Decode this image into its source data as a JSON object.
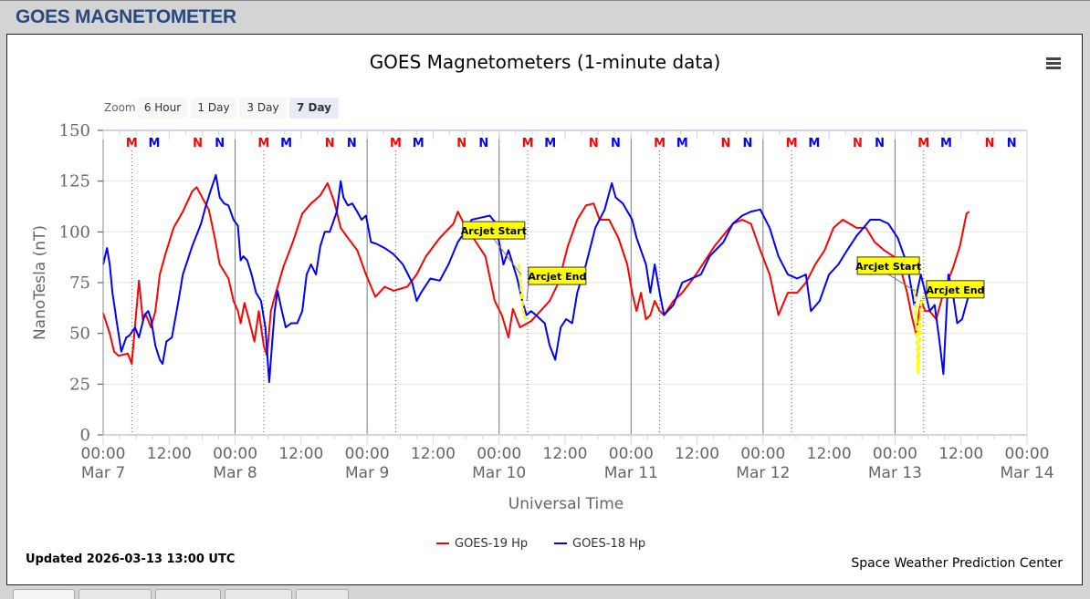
{
  "page": {
    "title": "GOES MAGNETOMETER"
  },
  "chart_data": {
    "type": "line",
    "title": "GOES Magnetometers (1-minute data)",
    "xlabel": "Universal Time",
    "ylabel": "NanoTesla (nT)",
    "x_unit": "hours since 2026-03-07 00:00 UTC",
    "xlim": [
      0,
      168
    ],
    "ylim": [
      0,
      150
    ],
    "yticks": [
      0,
      25,
      50,
      75,
      100,
      125,
      150
    ],
    "xticks": [
      {
        "hour": 0,
        "time": "00:00",
        "date": "Mar 7"
      },
      {
        "hour": 12,
        "time": "12:00",
        "date": ""
      },
      {
        "hour": 24,
        "time": "00:00",
        "date": "Mar 8"
      },
      {
        "hour": 36,
        "time": "12:00",
        "date": ""
      },
      {
        "hour": 48,
        "time": "00:00",
        "date": "Mar 9"
      },
      {
        "hour": 60,
        "time": "12:00",
        "date": ""
      },
      {
        "hour": 72,
        "time": "00:00",
        "date": "Mar 10"
      },
      {
        "hour": 84,
        "time": "12:00",
        "date": ""
      },
      {
        "hour": 96,
        "time": "00:00",
        "date": "Mar 11"
      },
      {
        "hour": 108,
        "time": "12:00",
        "date": ""
      },
      {
        "hour": 120,
        "time": "00:00",
        "date": "Mar 12"
      },
      {
        "hour": 132,
        "time": "12:00",
        "date": ""
      },
      {
        "hour": 144,
        "time": "00:00",
        "date": "Mar 13"
      },
      {
        "hour": 156,
        "time": "12:00",
        "date": ""
      },
      {
        "hour": 168,
        "time": "00:00",
        "date": "Mar 14"
      }
    ],
    "grid": true,
    "legend_position": "bottom-center",
    "series": [
      {
        "name": "GOES-19 Hp",
        "color": "#ff0000",
        "points": [
          [
            0,
            60
          ],
          [
            1.2,
            50
          ],
          [
            2,
            41
          ],
          [
            2.8,
            39
          ],
          [
            4.5,
            40
          ],
          [
            5.2,
            35
          ],
          [
            6.2,
            66
          ],
          [
            6.5,
            76
          ],
          [
            7.2,
            57
          ],
          [
            7.8,
            59
          ],
          [
            8.7,
            53
          ],
          [
            9.5,
            61
          ],
          [
            10.3,
            79
          ],
          [
            11.2,
            88
          ],
          [
            12.8,
            102
          ],
          [
            14.5,
            110
          ],
          [
            16.2,
            120
          ],
          [
            17,
            122
          ],
          [
            18.2,
            116
          ],
          [
            19.2,
            111
          ],
          [
            20.3,
            97
          ],
          [
            21.2,
            84
          ],
          [
            22.8,
            77
          ],
          [
            23.7,
            66
          ],
          [
            24.5,
            61
          ],
          [
            25,
            55
          ],
          [
            25.7,
            65
          ],
          [
            26.5,
            57
          ],
          [
            27.5,
            46
          ],
          [
            28.3,
            61
          ],
          [
            29.2,
            44
          ],
          [
            29.8,
            39
          ],
          [
            30.5,
            61
          ],
          [
            31.2,
            68
          ],
          [
            32.8,
            83
          ],
          [
            34.5,
            95
          ],
          [
            36.2,
            109
          ],
          [
            37.8,
            114
          ],
          [
            39.5,
            118
          ],
          [
            40.8,
            124
          ],
          [
            42,
            115
          ],
          [
            43.2,
            102
          ],
          [
            44.5,
            97
          ],
          [
            46.2,
            91
          ],
          [
            47.8,
            79
          ],
          [
            49.5,
            68
          ],
          [
            51.2,
            73
          ],
          [
            52.8,
            71
          ],
          [
            55.3,
            73
          ],
          [
            57,
            79
          ],
          [
            58.7,
            88
          ],
          [
            61.2,
            97
          ],
          [
            63.7,
            104
          ],
          [
            64.5,
            110
          ],
          [
            65.8,
            103
          ],
          [
            67.8,
            95
          ],
          [
            69.5,
            88
          ],
          [
            71.2,
            66
          ],
          [
            72.5,
            59
          ],
          [
            73.7,
            48
          ],
          [
            74.5,
            62
          ],
          [
            75.8,
            53
          ],
          [
            77.8,
            56
          ],
          [
            79.5,
            61
          ],
          [
            81.2,
            66
          ],
          [
            82.8,
            75
          ],
          [
            84.5,
            93
          ],
          [
            86.2,
            106
          ],
          [
            87.8,
            113
          ],
          [
            89.2,
            114
          ],
          [
            90.3,
            106
          ],
          [
            92,
            106
          ],
          [
            93.7,
            97
          ],
          [
            95.3,
            84
          ],
          [
            96.2,
            70
          ],
          [
            97,
            61
          ],
          [
            97.8,
            70
          ],
          [
            98.7,
            57
          ],
          [
            99.5,
            59
          ],
          [
            100.3,
            66
          ],
          [
            101.2,
            61
          ],
          [
            102,
            59
          ],
          [
            103.7,
            66
          ],
          [
            105.3,
            70
          ],
          [
            107.8,
            79
          ],
          [
            111.2,
            93
          ],
          [
            114.5,
            104
          ],
          [
            116.2,
            106
          ],
          [
            117.8,
            104
          ],
          [
            119.5,
            91
          ],
          [
            121.2,
            79
          ],
          [
            122.8,
            59
          ],
          [
            124.5,
            70
          ],
          [
            126.2,
            70
          ],
          [
            127.8,
            75
          ],
          [
            129.5,
            84
          ],
          [
            131.2,
            91
          ],
          [
            132.8,
            102
          ],
          [
            134.5,
            106
          ],
          [
            137,
            102
          ],
          [
            138.7,
            102
          ],
          [
            140.3,
            95
          ],
          [
            142,
            91
          ],
          [
            143.7,
            88
          ],
          [
            145.3,
            79
          ],
          [
            146.2,
            70
          ],
          [
            147,
            59
          ],
          [
            147.8,
            50
          ],
          [
            148.7,
            66
          ],
          [
            149.5,
            61
          ],
          [
            150.3,
            61
          ],
          [
            151.5,
            57
          ],
          [
            152.8,
            70
          ],
          [
            154.5,
            82
          ],
          [
            155.8,
            93
          ],
          [
            157,
            109
          ],
          [
            157.5,
            110
          ]
        ]
      },
      {
        "name": "GOES-18 Hp",
        "color": "#0000ff",
        "points": [
          [
            0,
            84
          ],
          [
            0.7,
            92
          ],
          [
            1.2,
            84
          ],
          [
            1.7,
            70
          ],
          [
            2.5,
            55
          ],
          [
            3.3,
            41
          ],
          [
            4.2,
            48
          ],
          [
            4.8,
            49
          ],
          [
            5.8,
            53
          ],
          [
            6.5,
            48
          ],
          [
            7.5,
            59
          ],
          [
            8.2,
            61
          ],
          [
            8.7,
            57
          ],
          [
            9.5,
            44
          ],
          [
            10.3,
            37
          ],
          [
            10.8,
            35
          ],
          [
            11.5,
            46
          ],
          [
            12.5,
            48
          ],
          [
            13.7,
            66
          ],
          [
            14.5,
            79
          ],
          [
            16.2,
            93
          ],
          [
            17.8,
            104
          ],
          [
            18.7,
            113
          ],
          [
            19.5,
            120
          ],
          [
            20.5,
            128
          ],
          [
            21.2,
            117
          ],
          [
            22,
            114
          ],
          [
            22.8,
            113
          ],
          [
            23.7,
            106
          ],
          [
            24.5,
            103
          ],
          [
            25,
            86
          ],
          [
            25.5,
            88
          ],
          [
            26.2,
            86
          ],
          [
            27,
            79
          ],
          [
            27.8,
            70
          ],
          [
            28.7,
            66
          ],
          [
            29.5,
            53
          ],
          [
            30.2,
            26
          ],
          [
            30.7,
            44
          ],
          [
            31.2,
            61
          ],
          [
            31.7,
            71
          ],
          [
            32.5,
            61
          ],
          [
            33.2,
            53
          ],
          [
            34.2,
            55
          ],
          [
            35.3,
            55
          ],
          [
            36.2,
            61
          ],
          [
            37,
            79
          ],
          [
            37.8,
            84
          ],
          [
            38.7,
            79
          ],
          [
            39.5,
            93
          ],
          [
            40.3,
            100
          ],
          [
            41.2,
            100
          ],
          [
            42.5,
            110
          ],
          [
            43.2,
            125
          ],
          [
            43.7,
            117
          ],
          [
            44.5,
            113
          ],
          [
            45.3,
            114
          ],
          [
            46.2,
            110
          ],
          [
            47,
            106
          ],
          [
            47.8,
            108
          ],
          [
            48.7,
            95
          ],
          [
            49.8,
            94
          ],
          [
            51.2,
            92
          ],
          [
            52.8,
            89
          ],
          [
            54.5,
            84
          ],
          [
            56.2,
            75
          ],
          [
            57,
            66
          ],
          [
            57.8,
            70
          ],
          [
            59.5,
            77
          ],
          [
            61.2,
            76
          ],
          [
            62.8,
            84
          ],
          [
            64.5,
            95
          ],
          [
            65.8,
            100
          ],
          [
            67,
            106
          ],
          [
            68.7,
            107
          ],
          [
            70.3,
            108
          ],
          [
            71.2,
            105
          ],
          [
            72,
            95
          ],
          [
            72.8,
            84
          ],
          [
            73.7,
            91
          ],
          [
            74.5,
            84
          ],
          [
            75.3,
            77
          ],
          [
            76.2,
            66
          ],
          [
            77,
            59
          ],
          [
            77.8,
            61
          ],
          [
            78.7,
            59
          ],
          [
            79.5,
            57
          ],
          [
            80.3,
            55
          ],
          [
            81.2,
            44
          ],
          [
            82.2,
            37
          ],
          [
            83.2,
            53
          ],
          [
            84.2,
            57
          ],
          [
            85.3,
            55
          ],
          [
            86.2,
            70
          ],
          [
            87.8,
            84
          ],
          [
            89.5,
            102
          ],
          [
            91.2,
            111
          ],
          [
            92.5,
            124
          ],
          [
            93.2,
            117
          ],
          [
            94.5,
            114
          ],
          [
            96.2,
            106
          ],
          [
            97,
            97
          ],
          [
            97.8,
            91
          ],
          [
            98.7,
            84
          ],
          [
            99.5,
            70
          ],
          [
            100.3,
            84
          ],
          [
            101.2,
            70
          ],
          [
            102,
            59
          ],
          [
            103.7,
            64
          ],
          [
            105.3,
            75
          ],
          [
            107,
            77
          ],
          [
            108.7,
            79
          ],
          [
            110.3,
            88
          ],
          [
            112.8,
            95
          ],
          [
            114.5,
            104
          ],
          [
            116.2,
            108
          ],
          [
            117.8,
            110
          ],
          [
            119.5,
            111
          ],
          [
            121.2,
            102
          ],
          [
            122.8,
            88
          ],
          [
            124.5,
            79
          ],
          [
            126.2,
            77
          ],
          [
            127.8,
            79
          ],
          [
            128.7,
            61
          ],
          [
            130.3,
            66
          ],
          [
            132,
            79
          ],
          [
            133.7,
            84
          ],
          [
            135.3,
            91
          ],
          [
            137,
            98
          ],
          [
            139.5,
            106
          ],
          [
            141.2,
            106
          ],
          [
            142.8,
            104
          ],
          [
            144.5,
            97
          ],
          [
            146.2,
            84
          ],
          [
            147.5,
            64
          ],
          [
            148.7,
            79
          ],
          [
            149.5,
            70
          ],
          [
            150.3,
            61
          ],
          [
            151.2,
            64
          ],
          [
            152,
            48
          ],
          [
            152.8,
            30
          ],
          [
            153.7,
            79
          ],
          [
            154.5,
            70
          ],
          [
            155.3,
            55
          ],
          [
            156.2,
            57
          ],
          [
            157.5,
            70
          ]
        ]
      }
    ],
    "arcjet_segments": [
      {
        "points": [
          [
            75.6,
            84
          ],
          [
            76,
            72
          ],
          [
            76.4,
            60
          ],
          [
            76.8,
            57
          ]
        ]
      },
      {
        "points": [
          [
            147.6,
            72
          ],
          [
            147.9,
            55
          ],
          [
            148.2,
            30
          ],
          [
            148.5,
            50
          ],
          [
            148.8,
            68
          ]
        ]
      }
    ],
    "annotations": [
      {
        "label": "Arcjet Start",
        "hour": 76.0,
        "value": 79
      },
      {
        "label": "Arcjet End",
        "hour": 77.0,
        "value": 66
      },
      {
        "label": "Arcjet Start",
        "hour": 147.6,
        "value": 71
      },
      {
        "label": "Arcjet End",
        "hour": 148.9,
        "value": 67
      }
    ],
    "daily_markers": [
      {
        "label": "M",
        "color": "#ff0000",
        "hour_of_day": 5.2,
        "dotted_line": true
      },
      {
        "label": "M",
        "color": "#0000ff",
        "hour_of_day": 9.3,
        "dotted_line": false
      },
      {
        "label": "N",
        "color": "#ff0000",
        "hour_of_day": 17.2,
        "dotted_line": false
      },
      {
        "label": "N",
        "color": "#0000ff",
        "hour_of_day": 21.2,
        "dotted_line": false
      }
    ]
  },
  "zoom": {
    "label": "Zoom",
    "buttons": [
      "6 Hour",
      "1 Day",
      "3 Day",
      "7 Day"
    ],
    "selected": "7 Day"
  },
  "footer": {
    "updated": "Updated 2026-03-13 13:00 UTC",
    "credit": "Space Weather Prediction Center"
  },
  "icons": {
    "menu": "hamburger-menu-icon"
  }
}
